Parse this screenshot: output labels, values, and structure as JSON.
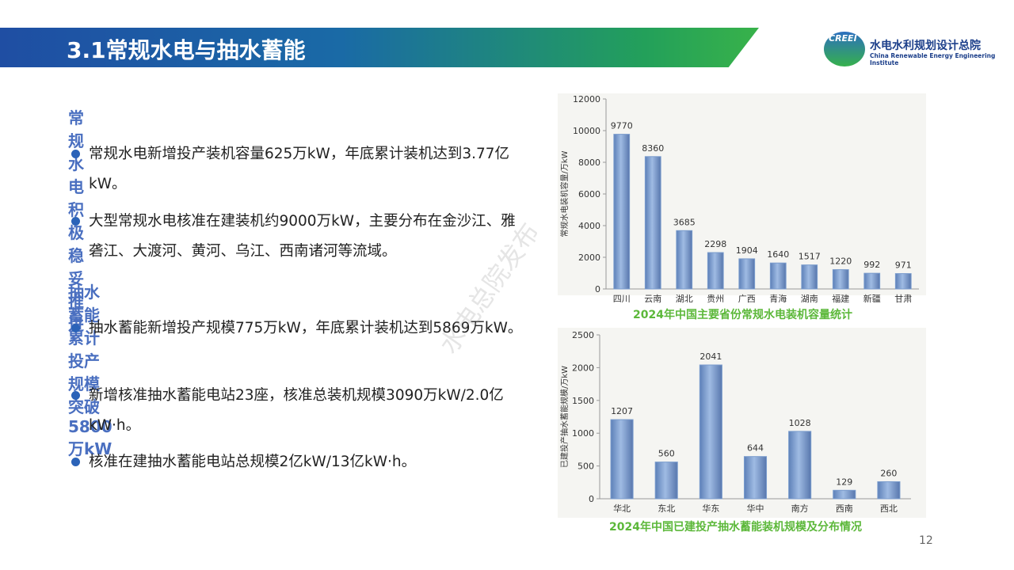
{
  "header": {
    "title": "3.1常规水电与抽水蓄能",
    "logo_mark": "CREEI",
    "org_name": "水电水利规划设计总院",
    "org_name_en": "China Renewable Energy Engineering Institute"
  },
  "sections": [
    {
      "heading": "常规水电积极稳妥推进",
      "bullets": [
        "常规水电新增投产装机容量625万kW，年底累计装机达到3.77亿kW。",
        "大型常规水电核准在建装机约9000万kW，主要分布在金沙江、雅砻江、大渡河、黄河、乌江、西南诸河等流域。"
      ]
    },
    {
      "heading": "抽水蓄能累计投产规模突破5800万kW",
      "bullets": [
        "抽水蓄能新增投产规模775万kW，年底累计装机达到5869万kW。",
        "新增核准抽水蓄能电站23座，核准总装机规模3090万kW/2.0亿kW·h。",
        "核准在建抽水蓄能电站总规模2亿kW/13亿kW·h。"
      ]
    }
  ],
  "watermark": "水电总院发布",
  "page_number": "12",
  "chart_data": [
    {
      "type": "bar",
      "title": "2024年中国主要省份常规水电装机容量统计",
      "y_label": "常规水电装机容量/万kW",
      "categories": [
        "四川",
        "云南",
        "湖北",
        "贵州",
        "广西",
        "青海",
        "湖南",
        "福建",
        "新疆",
        "甘肃"
      ],
      "values": [
        9770,
        8360,
        3685,
        2298,
        1904,
        1640,
        1517,
        1220,
        992,
        971
      ],
      "color": "#7a9ccd",
      "ylim": [
        0,
        12000
      ],
      "yticks": [
        0,
        2000,
        4000,
        6000,
        8000,
        10000,
        12000
      ]
    },
    {
      "type": "bar",
      "title": "2024年中国已建投产抽水蓄能装机规模及分布情况",
      "y_label": "已建投产抽水蓄能规模/万kW",
      "categories": [
        "华北",
        "东北",
        "华东",
        "华中",
        "南方",
        "西南",
        "西北"
      ],
      "values": [
        1207,
        560,
        2041,
        644,
        1028,
        129,
        260
      ],
      "color": "#7a9ccd",
      "ylim": [
        0,
        2500
      ],
      "yticks": [
        0,
        500,
        1000,
        1500,
        2000,
        2500
      ]
    }
  ]
}
